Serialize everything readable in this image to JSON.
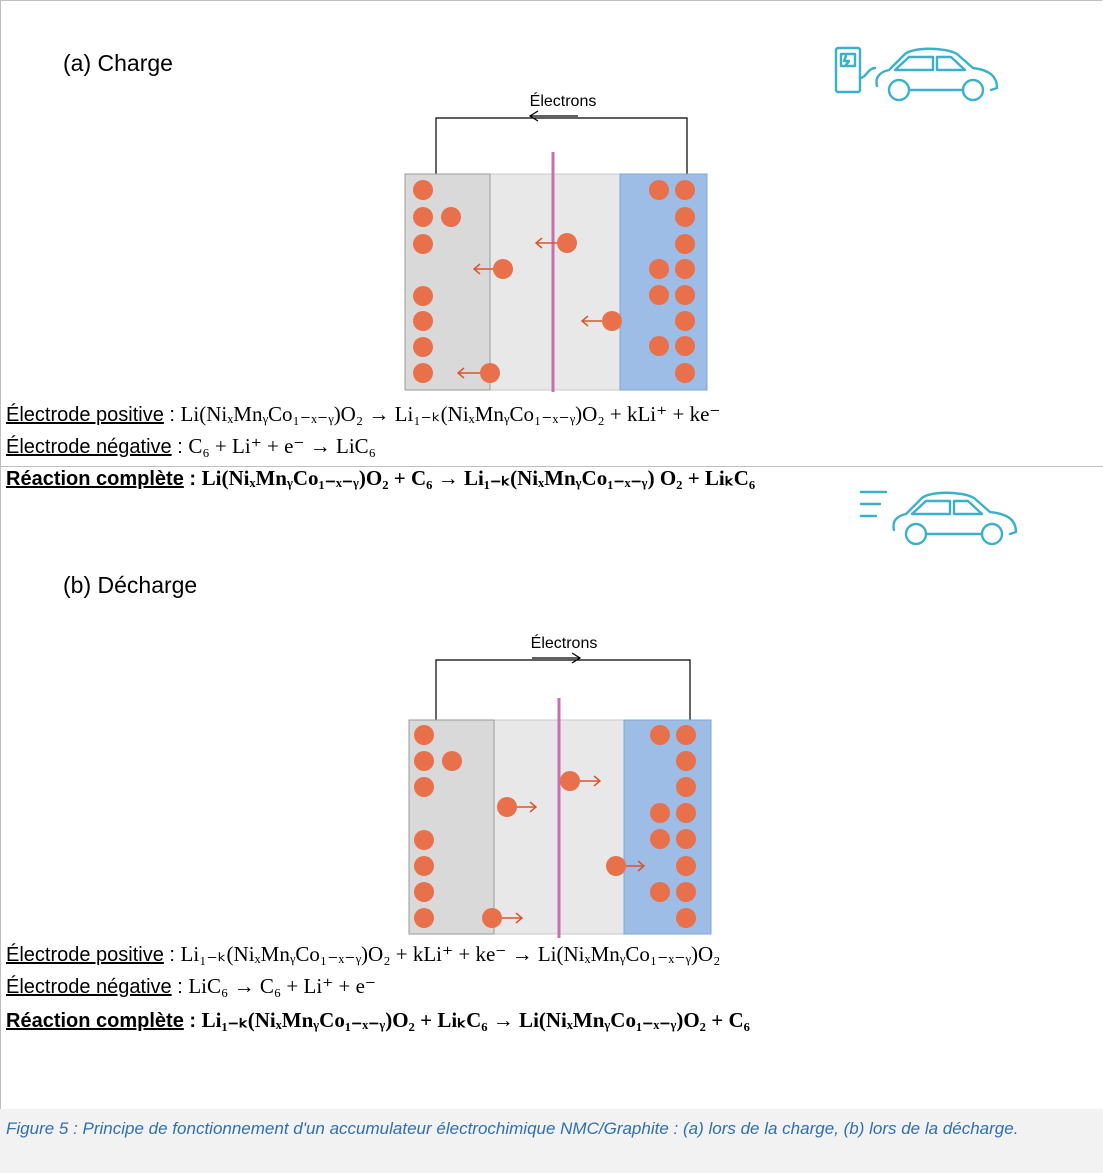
{
  "panels": [
    {
      "label": "(a)  Charge",
      "electrons_label": "Électrons",
      "equations": [
        {
          "label": "Électrode positive",
          "text": "Li(NiₓMnᵧCo₁₋ₓ₋ᵧ)O₂  → Li₁₋ₖ(NiₓMnᵧCo₁₋ₓ₋ᵧ)O₂ + kLi⁺ + ke⁻"
        },
        {
          "label": "Électrode négative",
          "text": "C₆ + Li⁺ + e⁻ → LiC₆"
        },
        {
          "label": "Réaction complète",
          "text": "Li(NiₓMnᵧCo₁₋ₓ₋ᵧ)O₂ + C₆ → Li₁₋ₖ(NiₓMnᵧCo₁₋ₓ₋ᵧ) O₂ + LiₖC₆"
        }
      ]
    },
    {
      "label": "(b)  Décharge",
      "electrons_label": "Électrons",
      "equations": [
        {
          "label": "Électrode positive",
          "text": "Li₁₋ₖ(NiₓMnᵧCo₁₋ₓ₋ᵧ)O₂ + kLi⁺ + ke⁻ → Li(NiₓMnᵧCo₁₋ₓ₋ᵧ)O₂"
        },
        {
          "label": "Électrode négative",
          "text": "LiC₆  → C₆ + Li⁺ + e⁻"
        },
        {
          "label": "Réaction complète",
          "text": "Li₁₋ₖ(NiₓMnᵧCo₁₋ₓ₋ᵧ)O₂ + LiₖC₆ → Li(NiₓMnᵧCo₁₋ₓ₋ᵧ)O₂ + C₆"
        }
      ]
    }
  ],
  "caption": "Figure 5 : Principe de fonctionnement d'un accumulateur électrochimique NMC/Graphite : (a) lors de la charge, (b) lors de la décharge.",
  "colors": {
    "ion": "#e8704a",
    "separator": "#c86fb0",
    "electrolyte": "#e8e8e8",
    "graphite_electrode": "#d9d9d9",
    "nmc_electrode": "#9dbde6",
    "car_icon": "#3bb0c9",
    "caption_text": "#2f6fb0"
  },
  "icons": [
    "charging-station-car-icon",
    "moving-car-icon"
  ]
}
